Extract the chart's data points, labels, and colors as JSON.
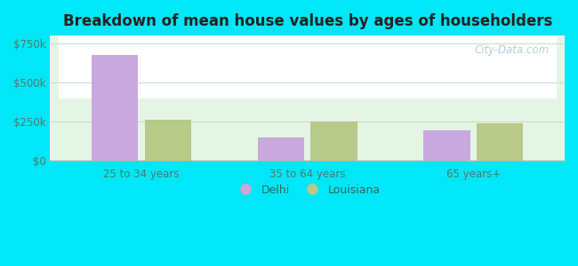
{
  "title": "Breakdown of mean house values by ages of householders",
  "categories": [
    "25 to 34 years",
    "35 to 64 years",
    "65 years+"
  ],
  "delhi_values": [
    675000,
    150000,
    195000
  ],
  "louisiana_values": [
    262000,
    252000,
    237000
  ],
  "delhi_color": "#c9a8de",
  "louisiana_color": "#b8c98a",
  "yticks": [
    0,
    250000,
    500000,
    750000
  ],
  "ytick_labels": [
    "$0",
    "$250k",
    "$500k",
    "$750k"
  ],
  "ylim": [
    0,
    800000
  ],
  "outer_bg": "#00e8f8",
  "chart_bg_top": "#ffffff",
  "chart_bg_bottom": "#d8f0e0",
  "legend_delhi": "Delhi",
  "legend_louisiana": "Louisiana",
  "watermark": "City-Data.com",
  "bar_width": 0.28,
  "bar_gap": 0.04
}
